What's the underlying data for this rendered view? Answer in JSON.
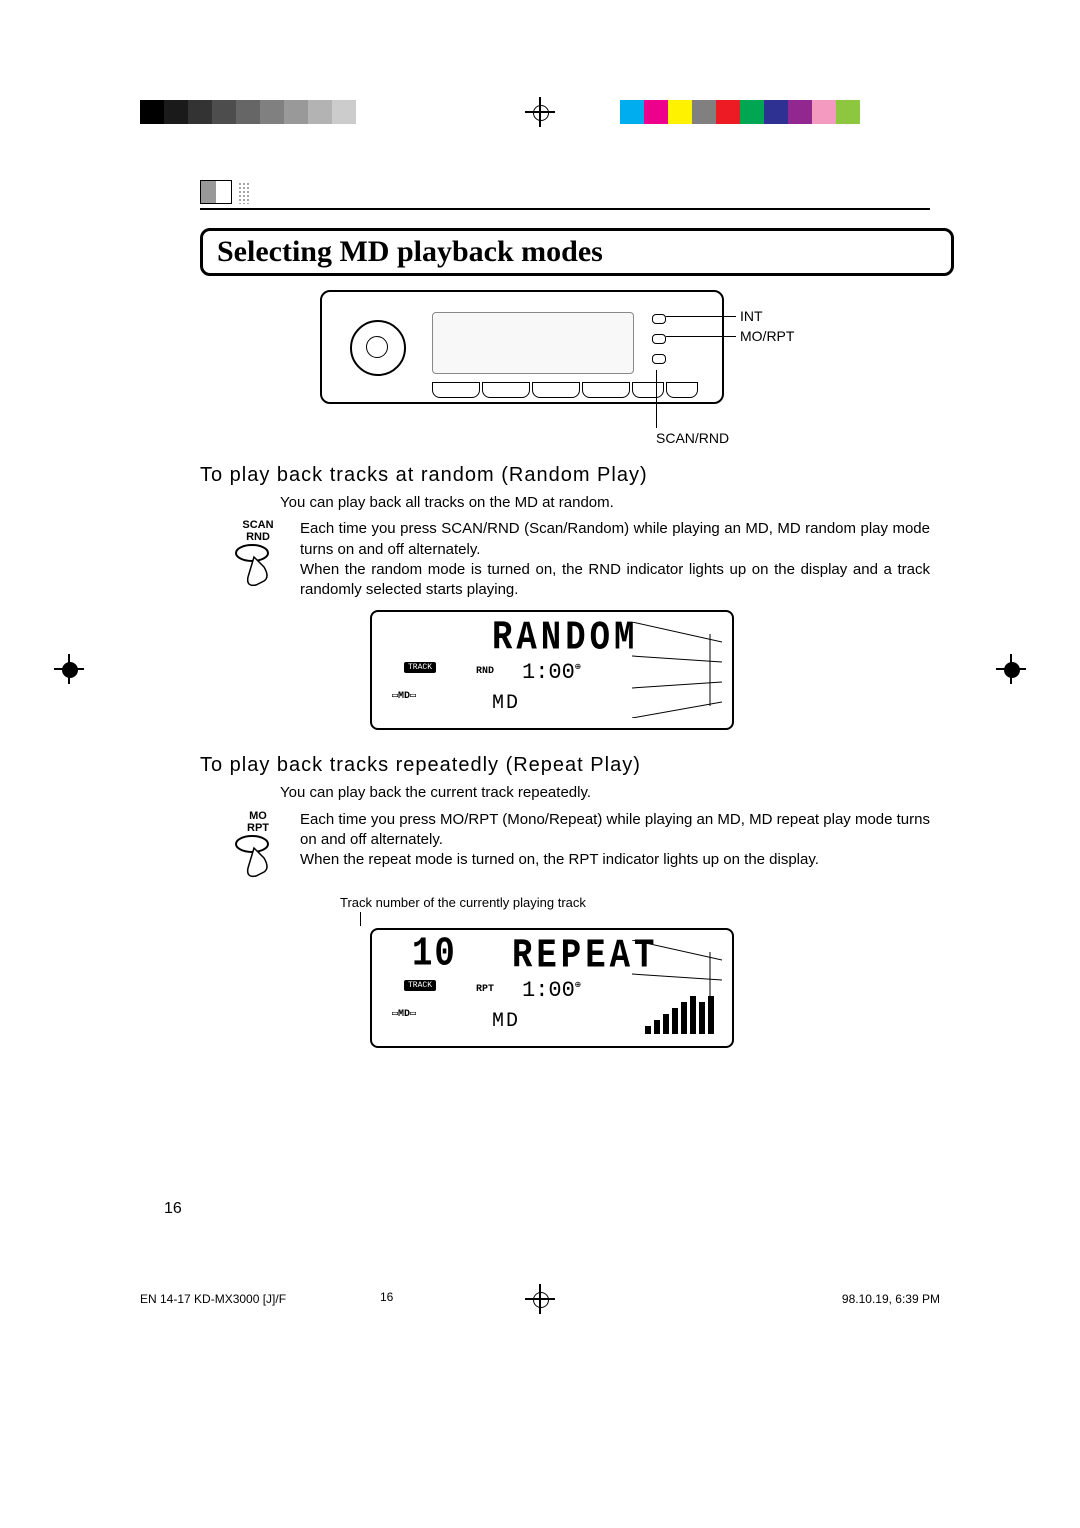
{
  "registration": {
    "gray_swatches": [
      "#000000",
      "#1a1a1a",
      "#333333",
      "#4d4d4d",
      "#666666",
      "#808080",
      "#999999",
      "#b3b3b3",
      "#cccccc",
      "#ffffff"
    ],
    "color_swatches": [
      "#00aeef",
      "#ec008c",
      "#fff200",
      "#808080",
      "#ed1c24",
      "#00a651",
      "#2e3192",
      "#92278f",
      "#f49ac1",
      "#8dc63f"
    ]
  },
  "header": {
    "section_title": "Selecting MD playback modes"
  },
  "device_callouts": {
    "int": "INT",
    "morpt": "MO/RPT",
    "scanrnd": "SCAN/RND"
  },
  "random": {
    "heading": "To play back tracks at random (Random Play)",
    "intro": "You can play back all tracks on the MD at random.",
    "button_label_line1": "SCAN",
    "button_label_line2": "RND",
    "para": "Each time you press SCAN/RND (Scan/Random) while playing an MD, MD random play mode turns on and off alternately.\nWhen the random mode is turned on, the RND indicator lights up on the display and a track randomly selected starts playing.",
    "lcd": {
      "big_text": "RANDOM",
      "indicator": "RND",
      "time": "1:00",
      "source": "MD",
      "track_label": "TRACK",
      "md_logo": "MD"
    }
  },
  "repeat": {
    "heading": "To play back tracks repeatedly (Repeat Play)",
    "intro": "You can play back the current track repeatedly.",
    "button_label_line1": "MO",
    "button_label_line2": "RPT",
    "para": "Each time you press MO/RPT (Mono/Repeat) while playing an MD, MD repeat play mode turns on and off alternately.\nWhen the repeat mode is turned on, the RPT indicator lights up on the display.",
    "caption": "Track number of the currently playing track",
    "lcd": {
      "track_num": "10",
      "big_text": "REPEAT",
      "indicator": "RPT",
      "time": "1:00",
      "source": "MD",
      "track_label": "TRACK",
      "md_logo": "MD"
    }
  },
  "page_number": "16",
  "footer": {
    "left": "EN  14-17  KD-MX3000 [J]/F",
    "center_page": "16",
    "right": "98.10.19, 6:39 PM"
  }
}
